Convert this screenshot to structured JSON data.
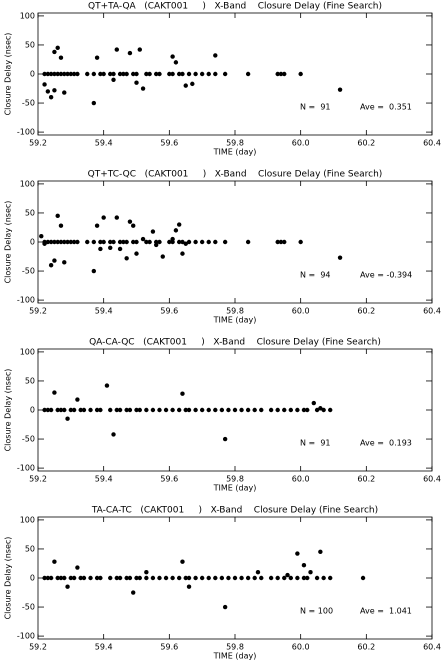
{
  "chart_data": [
    {
      "type": "scatter",
      "title": "QT+TA-QA   (CAKT001     )   X-Band    Closure Delay (Fine Search)",
      "xlabel": "TIME (day)",
      "ylabel": "Closure Delay (nsec)",
      "color": "#000000",
      "x": [
        59.22,
        59.23,
        59.24,
        59.25,
        59.26,
        59.27,
        59.28,
        59.29,
        59.3,
        59.31,
        59.32,
        59.35,
        59.37,
        59.39,
        59.4,
        59.42,
        59.43,
        59.45,
        59.46,
        59.47,
        59.49,
        59.5,
        59.53,
        59.54,
        59.56,
        59.57,
        59.6,
        59.61,
        59.63,
        59.64,
        59.66,
        59.68,
        59.7,
        59.72,
        59.74,
        59.77,
        59.84,
        59.93,
        59.94,
        59.95,
        60.0,
        59.22,
        59.23,
        59.24,
        59.25,
        59.25,
        59.26,
        59.27,
        59.28,
        59.37,
        59.38,
        59.43,
        59.44,
        59.48,
        59.5,
        59.51,
        59.52,
        59.61,
        59.62,
        59.65,
        59.67,
        59.74,
        60.12
      ],
      "values": [
        0,
        0,
        0,
        0,
        0,
        0,
        0,
        0,
        0,
        0,
        0,
        0,
        0,
        0,
        0,
        0,
        0,
        0,
        0,
        0,
        0,
        0,
        0,
        0,
        0,
        0,
        0,
        0,
        0,
        0,
        0,
        0,
        0,
        0,
        0,
        0,
        0,
        0,
        0,
        0,
        0,
        -18,
        -30,
        -40,
        -28,
        38,
        45,
        28,
        -32,
        -50,
        28,
        -10,
        42,
        36,
        -15,
        42,
        -25,
        30,
        20,
        -20,
        -17,
        32,
        -27
      ],
      "xlim": [
        59.2,
        60.4
      ],
      "ylim": [
        -105,
        105
      ],
      "xticks": [
        59.2,
        59.4,
        59.6,
        59.8,
        {
          "value": 60,
          "label": "60.0"
        },
        60.2,
        60.4
      ],
      "yticks": [
        -100,
        -50,
        0,
        50,
        100
      ],
      "n_label": "N =  91",
      "ave_label": "Ave =  0.351"
    },
    {
      "type": "scatter",
      "title": "QT+TC-QC   (CAKT001     )   X-Band    Closure Delay (Fine Search)",
      "xlabel": "TIME (day)",
      "ylabel": "Closure Delay (nsec)",
      "color": "#000000",
      "x": [
        59.22,
        59.23,
        59.24,
        59.25,
        59.26,
        59.27,
        59.28,
        59.29,
        59.3,
        59.31,
        59.32,
        59.35,
        59.37,
        59.39,
        59.4,
        59.42,
        59.43,
        59.45,
        59.46,
        59.47,
        59.49,
        59.5,
        59.53,
        59.54,
        59.56,
        59.57,
        59.6,
        59.61,
        59.63,
        59.64,
        59.66,
        59.68,
        59.7,
        59.72,
        59.74,
        59.77,
        59.84,
        59.93,
        59.94,
        59.95,
        60.0,
        59.21,
        59.22,
        59.24,
        59.25,
        59.26,
        59.27,
        59.28,
        59.37,
        59.38,
        59.39,
        59.4,
        59.42,
        59.44,
        59.45,
        59.47,
        59.48,
        59.49,
        59.5,
        59.52,
        59.55,
        59.56,
        59.58,
        59.61,
        59.62,
        59.63,
        59.64,
        59.65,
        60.12
      ],
      "values": [
        0,
        0,
        0,
        0,
        0,
        0,
        0,
        0,
        0,
        0,
        0,
        0,
        0,
        0,
        0,
        0,
        0,
        0,
        0,
        0,
        0,
        0,
        0,
        0,
        0,
        0,
        0,
        0,
        0,
        0,
        0,
        0,
        0,
        0,
        0,
        0,
        0,
        0,
        0,
        0,
        0,
        10,
        -3,
        -40,
        -32,
        45,
        28,
        -35,
        -50,
        28,
        -12,
        42,
        -10,
        42,
        -12,
        -28,
        35,
        28,
        -20,
        5,
        18,
        -5,
        -25,
        5,
        20,
        30,
        -20,
        -3,
        -27
      ],
      "xlim": [
        59.2,
        60.4
      ],
      "ylim": [
        -105,
        105
      ],
      "xticks": [
        59.2,
        59.4,
        59.6,
        59.8,
        {
          "value": 60,
          "label": "60.0"
        },
        60.2,
        60.4
      ],
      "yticks": [
        -100,
        -50,
        0,
        50,
        100
      ],
      "n_label": "N =  94",
      "ave_label": "Ave = -0.394"
    },
    {
      "type": "scatter",
      "title": "QA-CA-QC   (CAKT001     )   X-Band    Closure Delay (Fine Search)",
      "xlabel": "TIME (day)",
      "ylabel": "Closure Delay (nsec)",
      "color": "#000000",
      "x": [
        59.22,
        59.23,
        59.24,
        59.26,
        59.27,
        59.28,
        59.3,
        59.31,
        59.33,
        59.34,
        59.36,
        59.38,
        59.39,
        59.42,
        59.44,
        59.45,
        59.47,
        59.48,
        59.5,
        59.51,
        59.53,
        59.55,
        59.57,
        59.59,
        59.61,
        59.63,
        59.65,
        59.66,
        59.68,
        59.7,
        59.72,
        59.74,
        59.76,
        59.78,
        59.8,
        59.82,
        59.84,
        59.86,
        59.88,
        59.91,
        59.93,
        59.95,
        59.97,
        59.99,
        60.01,
        60.02,
        60.05,
        60.07,
        60.09,
        59.25,
        59.29,
        59.32,
        59.41,
        59.43,
        59.64,
        59.77,
        60.04,
        60.06
      ],
      "values": [
        0,
        0,
        0,
        0,
        0,
        0,
        0,
        0,
        0,
        0,
        0,
        0,
        0,
        0,
        0,
        0,
        0,
        0,
        0,
        0,
        0,
        0,
        0,
        0,
        0,
        0,
        0,
        0,
        0,
        0,
        0,
        0,
        0,
        0,
        0,
        0,
        0,
        0,
        0,
        0,
        0,
        0,
        0,
        0,
        0,
        0,
        0,
        0,
        0,
        30,
        -15,
        18,
        42,
        -42,
        28,
        -50,
        12,
        3
      ],
      "xlim": [
        59.2,
        60.4
      ],
      "ylim": [
        -105,
        105
      ],
      "xticks": [
        59.2,
        59.4,
        59.6,
        59.8,
        {
          "value": 60,
          "label": "60.0"
        },
        60.2,
        60.4
      ],
      "yticks": [
        -100,
        -50,
        0,
        50,
        100
      ],
      "n_label": "N =  91",
      "ave_label": "Ave =  0.193"
    },
    {
      "type": "scatter",
      "title": "TA-CA-TC   (CAKT001     )   X-Band    Closure Delay (Fine Search)",
      "xlabel": "TIME (day)",
      "ylabel": "Closure Delay (nsec)",
      "color": "#000000",
      "x": [
        59.22,
        59.23,
        59.24,
        59.26,
        59.27,
        59.28,
        59.3,
        59.31,
        59.33,
        59.34,
        59.36,
        59.38,
        59.39,
        59.42,
        59.44,
        59.45,
        59.47,
        59.48,
        59.5,
        59.51,
        59.53,
        59.55,
        59.57,
        59.59,
        59.61,
        59.63,
        59.65,
        59.66,
        59.68,
        59.7,
        59.72,
        59.74,
        59.76,
        59.78,
        59.8,
        59.82,
        59.84,
        59.86,
        59.88,
        59.91,
        59.93,
        59.95,
        59.97,
        59.99,
        60.01,
        60.02,
        60.05,
        60.07,
        60.09,
        59.25,
        59.29,
        59.32,
        59.49,
        59.53,
        59.64,
        59.66,
        59.77,
        59.87,
        59.96,
        59.99,
        60.01,
        60.03,
        60.06,
        60.19
      ],
      "values": [
        0,
        0,
        0,
        0,
        0,
        0,
        0,
        0,
        0,
        0,
        0,
        0,
        0,
        0,
        0,
        0,
        0,
        0,
        0,
        0,
        0,
        0,
        0,
        0,
        0,
        0,
        0,
        0,
        0,
        0,
        0,
        0,
        0,
        0,
        0,
        0,
        0,
        0,
        0,
        0,
        0,
        0,
        0,
        0,
        0,
        0,
        0,
        0,
        0,
        28,
        -15,
        18,
        -25,
        10,
        28,
        -15,
        -50,
        10,
        5,
        42,
        22,
        10,
        45,
        0
      ],
      "xlim": [
        59.2,
        60.4
      ],
      "ylim": [
        -105,
        105
      ],
      "xticks": [
        59.2,
        59.4,
        59.6,
        59.8,
        {
          "value": 60,
          "label": "60.0"
        },
        60.2,
        60.4
      ],
      "yticks": [
        -100,
        -50,
        0,
        50,
        100
      ],
      "n_label": "N = 100",
      "ave_label": "Ave =  1.041"
    }
  ]
}
